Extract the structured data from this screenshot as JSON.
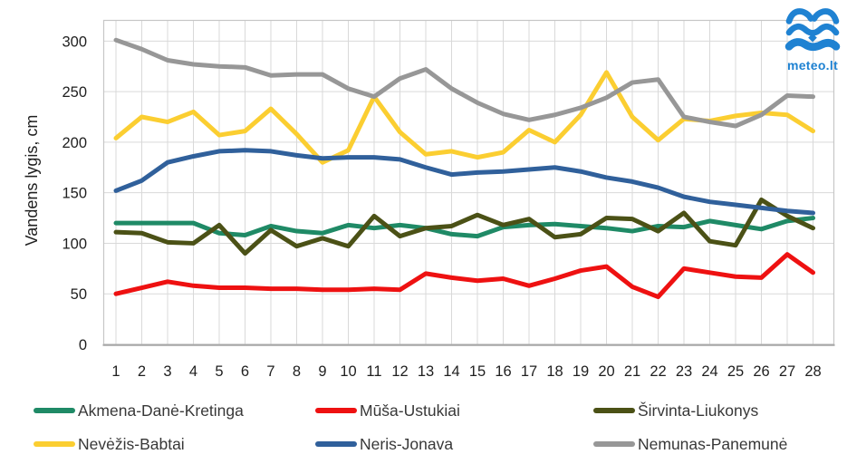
{
  "page": {
    "background": "#ffffff"
  },
  "chart_data": {
    "type": "line",
    "title": "",
    "ylabel": "Vandens lygis, cm",
    "x_labels": [
      "1",
      "2",
      "3",
      "4",
      "5",
      "6",
      "7",
      "8",
      "9",
      "10",
      "11",
      "12",
      "13",
      "14",
      "15",
      "16",
      "17",
      "18",
      "19",
      "20",
      "21",
      "22",
      "23",
      "24",
      "25",
      "26",
      "27",
      "28"
    ],
    "ylim": [
      0,
      320
    ],
    "yticks": [
      0,
      50,
      100,
      150,
      200,
      250,
      300
    ],
    "grid": true,
    "legend_position": "bottom",
    "series": [
      {
        "name": "Akmena-Danė-Kretinga",
        "color": "#1F8A66",
        "values": [
          120,
          120,
          120,
          120,
          110,
          108,
          117,
          112,
          110,
          118,
          115,
          118,
          115,
          109,
          107,
          116,
          118,
          119,
          117,
          115,
          112,
          117,
          116,
          122,
          118,
          114,
          122,
          125
        ]
      },
      {
        "name": "Mūša-Ustukiai",
        "color": "#EE1111",
        "values": [
          50,
          56,
          62,
          58,
          56,
          56,
          55,
          55,
          54,
          54,
          55,
          54,
          70,
          66,
          63,
          65,
          58,
          65,
          73,
          77,
          57,
          47,
          75,
          71,
          67,
          66,
          89,
          71
        ]
      },
      {
        "name": "Širvinta-Liukonys",
        "color": "#4B5116",
        "values": [
          111,
          110,
          101,
          100,
          118,
          90,
          113,
          97,
          105,
          97,
          127,
          107,
          115,
          117,
          128,
          118,
          124,
          106,
          109,
          125,
          124,
          112,
          130,
          102,
          98,
          143,
          127,
          115
        ]
      },
      {
        "name": "Nevėžis-Babtai",
        "color": "#FBCE31",
        "values": [
          204,
          225,
          220,
          230,
          207,
          211,
          233,
          208,
          180,
          192,
          245,
          210,
          188,
          191,
          185,
          190,
          212,
          200,
          227,
          269,
          225,
          202,
          223,
          221,
          226,
          229,
          227,
          211
        ]
      },
      {
        "name": "Neris-Jonava",
        "color": "#30609B",
        "values": [
          152,
          162,
          180,
          186,
          191,
          192,
          191,
          187,
          184,
          185,
          185,
          183,
          175,
          168,
          170,
          171,
          173,
          175,
          171,
          165,
          161,
          155,
          146,
          141,
          138,
          135,
          132,
          130
        ]
      },
      {
        "name": "Nemunas-Panemunė",
        "color": "#979797",
        "values": [
          301,
          292,
          281,
          277,
          275,
          274,
          266,
          267,
          267,
          253,
          245,
          263,
          272,
          253,
          239,
          228,
          222,
          227,
          234,
          244,
          259,
          262,
          225,
          220,
          216,
          227,
          246,
          245
        ]
      }
    ]
  },
  "logo": {
    "text": "meteo.lt",
    "color": "#1F82D2"
  },
  "colors": {
    "gridline": "#d9d9d9",
    "plot_border": "#c6c6c6",
    "axis_line": "#a6a6a6",
    "tick_text": "#1f1f1f",
    "legend_text": "#383838"
  }
}
